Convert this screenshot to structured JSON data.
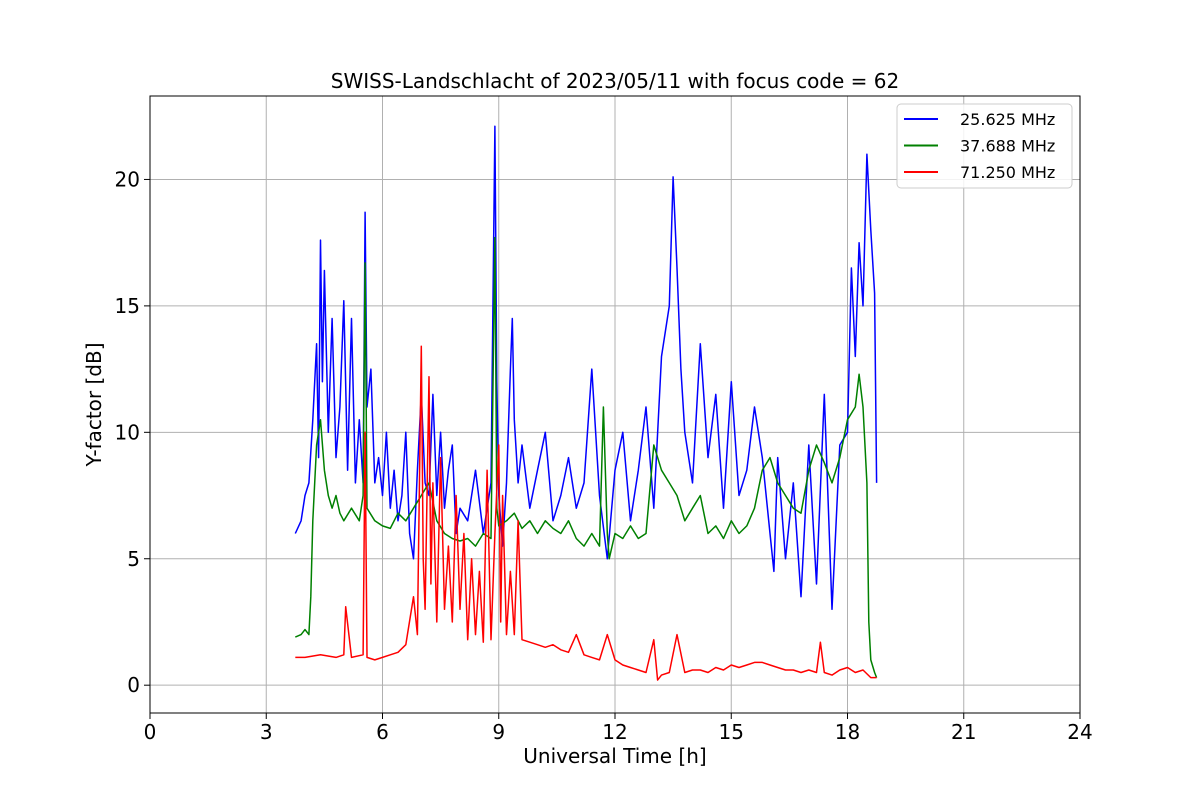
{
  "chart_data": {
    "type": "line",
    "title": "SWISS-Landschlacht of 2023/05/11 with focus code = 62",
    "xlabel": "Universal Time [h]",
    "ylabel": "Y-factor [dB]",
    "xlim": [
      0,
      24
    ],
    "ylim": [
      -1.1,
      23.3
    ],
    "xticks": [
      0,
      3,
      6,
      9,
      12,
      15,
      18,
      21,
      24
    ],
    "yticks": [
      0,
      5,
      10,
      15,
      20
    ],
    "grid": true,
    "legend_position": "top-right",
    "series": [
      {
        "name": "25.625 MHz",
        "color": "#0000ff",
        "x": [
          3.75,
          3.9,
          4.0,
          4.1,
          4.2,
          4.3,
          4.35,
          4.4,
          4.45,
          4.5,
          4.6,
          4.7,
          4.8,
          4.9,
          5.0,
          5.1,
          5.2,
          5.3,
          5.4,
          5.5,
          5.55,
          5.6,
          5.7,
          5.8,
          5.9,
          6.0,
          6.1,
          6.2,
          6.3,
          6.4,
          6.5,
          6.6,
          6.7,
          6.8,
          6.9,
          7.0,
          7.1,
          7.2,
          7.3,
          7.4,
          7.5,
          7.6,
          7.7,
          7.8,
          7.9,
          8.0,
          8.2,
          8.4,
          8.6,
          8.8,
          8.9,
          8.95,
          9.0,
          9.1,
          9.2,
          9.3,
          9.35,
          9.4,
          9.5,
          9.6,
          9.8,
          10.0,
          10.2,
          10.4,
          10.6,
          10.8,
          11.0,
          11.2,
          11.4,
          11.6,
          11.8,
          12.0,
          12.2,
          12.4,
          12.6,
          12.8,
          13.0,
          13.2,
          13.4,
          13.5,
          13.6,
          13.7,
          13.8,
          14.0,
          14.2,
          14.4,
          14.6,
          14.8,
          15.0,
          15.2,
          15.4,
          15.6,
          15.8,
          16.0,
          16.1,
          16.2,
          16.4,
          16.6,
          16.8,
          17.0,
          17.2,
          17.4,
          17.6,
          17.8,
          18.0,
          18.1,
          18.2,
          18.3,
          18.4,
          18.5,
          18.6,
          18.7,
          18.75
        ],
        "y": [
          6.0,
          6.5,
          7.5,
          8.0,
          10.5,
          13.5,
          9.0,
          17.6,
          12.0,
          16.4,
          10.0,
          14.5,
          9.0,
          11.0,
          15.2,
          8.5,
          14.5,
          8.0,
          10.5,
          8.0,
          18.7,
          11.0,
          12.5,
          8.0,
          9.0,
          7.5,
          10.0,
          7.0,
          8.5,
          6.5,
          7.5,
          10.0,
          6.0,
          5.0,
          8.5,
          11.5,
          8.0,
          7.5,
          11.5,
          7.5,
          10.0,
          7.0,
          8.5,
          9.5,
          6.0,
          7.0,
          6.5,
          8.5,
          6.0,
          8.0,
          22.1,
          12.0,
          7.5,
          5.5,
          8.0,
          12.5,
          14.5,
          10.5,
          8.0,
          9.5,
          7.0,
          8.5,
          10.0,
          6.5,
          7.5,
          9.0,
          7.0,
          8.0,
          12.5,
          7.5,
          5.0,
          8.5,
          10.0,
          6.5,
          8.5,
          11.0,
          7.0,
          13.0,
          15.0,
          20.1,
          16.5,
          12.5,
          10.0,
          8.0,
          13.5,
          9.0,
          11.5,
          7.0,
          12.0,
          7.5,
          8.5,
          11.0,
          9.0,
          6.0,
          4.5,
          9.0,
          5.0,
          8.0,
          3.5,
          9.5,
          4.0,
          11.5,
          3.0,
          9.5,
          10.0,
          16.5,
          13.0,
          17.5,
          15.0,
          21.0,
          18.0,
          15.5,
          8.0
        ]
      },
      {
        "name": "37.688 MHz",
        "color": "#008000",
        "x": [
          3.75,
          3.9,
          4.0,
          4.1,
          4.15,
          4.2,
          4.3,
          4.4,
          4.5,
          4.6,
          4.7,
          4.8,
          4.9,
          5.0,
          5.2,
          5.4,
          5.5,
          5.55,
          5.6,
          5.8,
          6.0,
          6.2,
          6.4,
          6.6,
          6.8,
          7.0,
          7.2,
          7.4,
          7.6,
          7.8,
          8.0,
          8.2,
          8.4,
          8.6,
          8.8,
          8.9,
          8.95,
          9.0,
          9.2,
          9.4,
          9.6,
          9.8,
          10.0,
          10.2,
          10.4,
          10.6,
          10.8,
          11.0,
          11.2,
          11.4,
          11.6,
          11.7,
          11.8,
          11.85,
          12.0,
          12.2,
          12.4,
          12.6,
          12.8,
          13.0,
          13.2,
          13.4,
          13.6,
          13.8,
          14.0,
          14.2,
          14.4,
          14.6,
          14.8,
          15.0,
          15.2,
          15.4,
          15.6,
          15.8,
          16.0,
          16.2,
          16.4,
          16.6,
          16.8,
          17.0,
          17.2,
          17.4,
          17.6,
          17.8,
          18.0,
          18.2,
          18.3,
          18.4,
          18.5,
          18.55,
          18.6,
          18.7,
          18.75
        ],
        "y": [
          1.9,
          2.0,
          2.2,
          2.0,
          3.5,
          6.5,
          9.5,
          10.5,
          8.5,
          7.5,
          7.0,
          7.5,
          6.8,
          6.5,
          7.0,
          6.5,
          7.5,
          16.7,
          7.0,
          6.5,
          6.3,
          6.2,
          6.8,
          6.5,
          7.0,
          7.5,
          8.0,
          6.5,
          6.0,
          5.8,
          5.7,
          5.8,
          5.5,
          6.0,
          5.8,
          17.7,
          7.0,
          6.3,
          6.5,
          6.8,
          6.2,
          6.5,
          6.0,
          6.5,
          6.2,
          6.0,
          6.5,
          5.8,
          5.5,
          6.0,
          5.5,
          11.0,
          6.0,
          5.0,
          6.0,
          5.8,
          6.3,
          5.8,
          6.0,
          9.5,
          8.5,
          8.0,
          7.5,
          6.5,
          7.0,
          7.5,
          6.0,
          6.3,
          5.8,
          6.5,
          6.0,
          6.3,
          7.0,
          8.5,
          9.0,
          8.0,
          7.5,
          7.0,
          6.8,
          8.5,
          9.5,
          8.8,
          8.0,
          9.0,
          10.5,
          11.0,
          12.3,
          11.0,
          8.0,
          2.5,
          1.0,
          0.5,
          0.3
        ]
      },
      {
        "name": "71.250 MHz",
        "color": "#ff0000",
        "x": [
          3.75,
          4.0,
          4.4,
          4.8,
          5.0,
          5.05,
          5.2,
          5.5,
          5.55,
          5.6,
          5.8,
          6.0,
          6.2,
          6.4,
          6.6,
          6.8,
          6.9,
          7.0,
          7.05,
          7.1,
          7.2,
          7.25,
          7.3,
          7.4,
          7.5,
          7.6,
          7.7,
          7.8,
          7.9,
          8.0,
          8.1,
          8.2,
          8.3,
          8.4,
          8.5,
          8.6,
          8.7,
          8.8,
          8.9,
          9.0,
          9.05,
          9.1,
          9.2,
          9.3,
          9.4,
          9.5,
          9.6,
          9.8,
          10.0,
          10.2,
          10.4,
          10.6,
          10.8,
          11.0,
          11.2,
          11.4,
          11.6,
          11.8,
          12.0,
          12.2,
          12.4,
          12.6,
          12.8,
          13.0,
          13.1,
          13.2,
          13.4,
          13.6,
          13.8,
          14.0,
          14.2,
          14.4,
          14.6,
          14.8,
          15.0,
          15.2,
          15.4,
          15.6,
          15.8,
          16.0,
          16.2,
          16.4,
          16.6,
          16.8,
          17.0,
          17.2,
          17.3,
          17.4,
          17.6,
          17.8,
          18.0,
          18.2,
          18.4,
          18.6,
          18.75
        ],
        "y": [
          1.1,
          1.1,
          1.2,
          1.1,
          1.2,
          3.1,
          1.1,
          1.2,
          10.0,
          1.1,
          1.0,
          1.1,
          1.2,
          1.3,
          1.6,
          3.5,
          2.0,
          13.4,
          5.0,
          3.0,
          12.2,
          4.0,
          8.0,
          2.5,
          9.0,
          3.0,
          5.5,
          2.5,
          7.5,
          3.0,
          6.0,
          1.8,
          5.0,
          2.0,
          4.5,
          1.7,
          8.5,
          1.8,
          6.0,
          9.5,
          2.5,
          7.5,
          2.0,
          4.5,
          2.0,
          6.5,
          1.8,
          1.7,
          1.6,
          1.5,
          1.6,
          1.4,
          1.3,
          2.0,
          1.2,
          1.1,
          1.0,
          2.0,
          1.0,
          0.8,
          0.7,
          0.6,
          0.5,
          1.8,
          0.2,
          0.4,
          0.5,
          2.0,
          0.5,
          0.6,
          0.6,
          0.5,
          0.7,
          0.6,
          0.8,
          0.7,
          0.8,
          0.9,
          0.9,
          0.8,
          0.7,
          0.6,
          0.6,
          0.5,
          0.6,
          0.5,
          1.7,
          0.5,
          0.4,
          0.6,
          0.7,
          0.5,
          0.6,
          0.3,
          0.3
        ]
      }
    ]
  }
}
